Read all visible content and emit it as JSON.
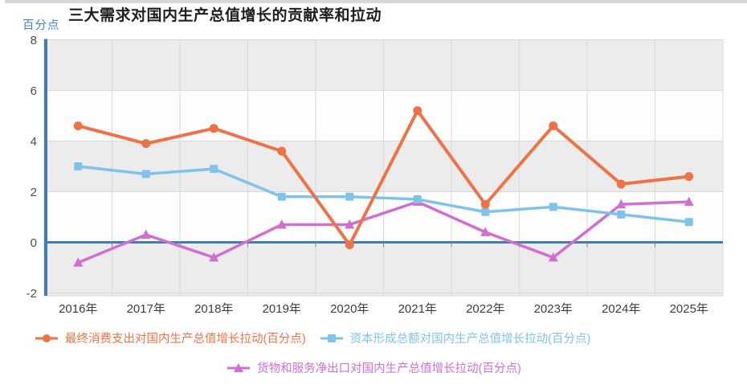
{
  "page": {
    "title": "三大需求对国内生产总值增长的贡献率和拉动",
    "y_unit_label": "百分点"
  },
  "chart_data": {
    "type": "line",
    "title": "三大需求对国内生产总值增长的贡献率和拉动",
    "ylabel": "百分点",
    "xlabel": "",
    "categories": [
      "2016年",
      "2017年",
      "2018年",
      "2019年",
      "2020年",
      "2021年",
      "2022年",
      "2023年",
      "2024年",
      "2025年"
    ],
    "ylim": [
      -2,
      8
    ],
    "yticks": [
      8,
      6,
      4,
      2,
      0,
      -2
    ],
    "grid": true,
    "legend_position": "bottom",
    "series": [
      {
        "name": "最终消费支出对国内生产总值增长拉动(百分点)",
        "marker": "circle",
        "color": "#ED7347",
        "values": [
          4.6,
          3.9,
          4.5,
          3.6,
          -0.1,
          5.2,
          1.5,
          4.6,
          2.3,
          2.6
        ]
      },
      {
        "name": "资本形成总额对国内生产总值增长拉动(百分点)",
        "marker": "square",
        "color": "#7FC3EA",
        "values": [
          3.0,
          2.7,
          2.9,
          1.8,
          1.8,
          1.7,
          1.2,
          1.4,
          1.1,
          0.8
        ]
      },
      {
        "name": "货物和服务净出口对国内生产总值增长拉动(百分点)",
        "marker": "triangle",
        "color": "#D16ED1",
        "values": [
          -0.8,
          0.3,
          -0.6,
          0.7,
          0.7,
          1.6,
          0.4,
          -0.6,
          1.5,
          1.6
        ]
      }
    ],
    "style": {
      "axis_color": "#3C7FB0",
      "band_gray": "#ECECEC",
      "band_white": "#FDFDFD",
      "gridline_color": "#D9D9D9",
      "tick_color": "#808080",
      "y_label_color": "#4D4D4D",
      "x_label_color": "#3D3D3D"
    }
  }
}
